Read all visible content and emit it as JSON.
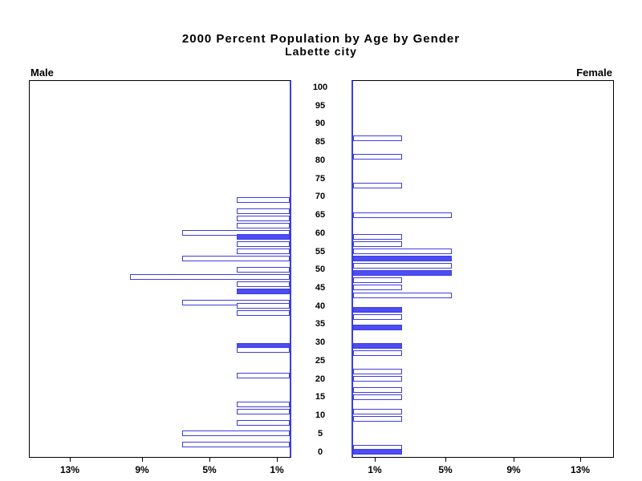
{
  "chart_data": {
    "type": "bar",
    "variant": "population-pyramid",
    "title": "2000 Percent Population by Age by Gender",
    "subtitle": "Labette city",
    "panels": {
      "left": "Male",
      "right": "Female"
    },
    "age_axis": {
      "min": 0,
      "max": 100,
      "step": 5,
      "tick_labels": [
        "100",
        "95",
        "90",
        "85",
        "80",
        "75",
        "70",
        "65",
        "60",
        "55",
        "50",
        "45",
        "40",
        "35",
        "30",
        "25",
        "20",
        "15",
        "10",
        "5",
        "0"
      ]
    },
    "percent_axis": {
      "unit": "%",
      "left_tick_labels": [
        "13%",
        "9%",
        "5%",
        "1%"
      ],
      "right_tick_labels": [
        "1%",
        "5%",
        "9%",
        "13%"
      ],
      "tick_values_percent": [
        13,
        9,
        5,
        1
      ]
    },
    "legend": "solid bars = filled (highlighted) ages; outlined bars = all other ages with population",
    "series": [
      {
        "name": "Male",
        "side": "left",
        "bars": [
          {
            "age": 69,
            "percent": 3.1,
            "filled": false
          },
          {
            "age": 66,
            "percent": 3.1,
            "filled": false
          },
          {
            "age": 64,
            "percent": 3.1,
            "filled": false
          },
          {
            "age": 62,
            "percent": 3.1,
            "filled": false
          },
          {
            "age": 60,
            "percent": 6.3,
            "filled": false
          },
          {
            "age": 59,
            "percent": 3.1,
            "filled": true
          },
          {
            "age": 57,
            "percent": 3.1,
            "filled": false
          },
          {
            "age": 55,
            "percent": 3.1,
            "filled": false
          },
          {
            "age": 53,
            "percent": 6.3,
            "filled": false
          },
          {
            "age": 50,
            "percent": 3.1,
            "filled": false
          },
          {
            "age": 48,
            "percent": 9.4,
            "filled": false
          },
          {
            "age": 46,
            "percent": 3.1,
            "filled": false
          },
          {
            "age": 44,
            "percent": 3.1,
            "filled": true
          },
          {
            "age": 41,
            "percent": 6.3,
            "filled": false
          },
          {
            "age": 40,
            "percent": 3.1,
            "filled": false
          },
          {
            "age": 38,
            "percent": 3.1,
            "filled": false
          },
          {
            "age": 29,
            "percent": 3.1,
            "filled": true
          },
          {
            "age": 28,
            "percent": 3.1,
            "filled": false
          },
          {
            "age": 21,
            "percent": 3.1,
            "filled": false
          },
          {
            "age": 13,
            "percent": 3.1,
            "filled": false
          },
          {
            "age": 11,
            "percent": 3.1,
            "filled": false
          },
          {
            "age": 8,
            "percent": 3.1,
            "filled": false
          },
          {
            "age": 5,
            "percent": 6.3,
            "filled": false
          },
          {
            "age": 2,
            "percent": 6.3,
            "filled": false
          }
        ]
      },
      {
        "name": "Female",
        "side": "right",
        "bars": [
          {
            "age": 86,
            "percent": 2.8,
            "filled": false
          },
          {
            "age": 81,
            "percent": 2.8,
            "filled": false
          },
          {
            "age": 73,
            "percent": 2.8,
            "filled": false
          },
          {
            "age": 65,
            "percent": 5.6,
            "filled": false
          },
          {
            "age": 59,
            "percent": 2.8,
            "filled": false
          },
          {
            "age": 57,
            "percent": 2.8,
            "filled": false
          },
          {
            "age": 55,
            "percent": 5.6,
            "filled": false
          },
          {
            "age": 53,
            "percent": 5.6,
            "filled": true
          },
          {
            "age": 51,
            "percent": 5.6,
            "filled": false
          },
          {
            "age": 49,
            "percent": 5.6,
            "filled": true
          },
          {
            "age": 47,
            "percent": 2.8,
            "filled": false
          },
          {
            "age": 45,
            "percent": 2.8,
            "filled": false
          },
          {
            "age": 43,
            "percent": 5.6,
            "filled": false
          },
          {
            "age": 39,
            "percent": 2.8,
            "filled": true
          },
          {
            "age": 37,
            "percent": 2.8,
            "filled": false
          },
          {
            "age": 34,
            "percent": 2.8,
            "filled": true
          },
          {
            "age": 29,
            "percent": 2.8,
            "filled": true
          },
          {
            "age": 27,
            "percent": 2.8,
            "filled": false
          },
          {
            "age": 22,
            "percent": 2.8,
            "filled": false
          },
          {
            "age": 20,
            "percent": 2.8,
            "filled": false
          },
          {
            "age": 17,
            "percent": 2.8,
            "filled": false
          },
          {
            "age": 15,
            "percent": 2.8,
            "filled": false
          },
          {
            "age": 11,
            "percent": 2.8,
            "filled": false
          },
          {
            "age": 9,
            "percent": 2.8,
            "filled": false
          },
          {
            "age": 1,
            "percent": 2.8,
            "filled": false
          },
          {
            "age": 0,
            "percent": 2.8,
            "filled": true
          }
        ]
      }
    ],
    "colors": {
      "bar_outline": "#3d3de0",
      "bar_fill": "#4d4df5",
      "center_axis": "#3d3de0",
      "frame": "#000000",
      "text": "#000000",
      "background": "#ffffff"
    }
  }
}
